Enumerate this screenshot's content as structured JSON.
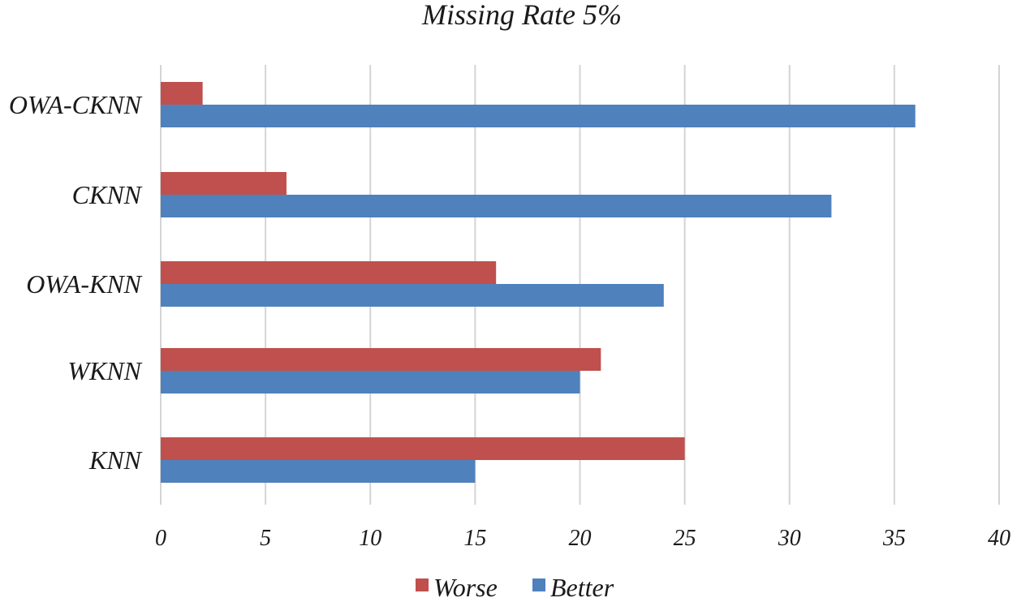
{
  "chart_data": {
    "type": "bar",
    "orientation": "horizontal",
    "title": "Missing Rate 5%",
    "categories": [
      "OWA-CKNN",
      "CKNN",
      "OWA-KNN",
      "WKNN",
      "KNN"
    ],
    "series": [
      {
        "name": "Worse",
        "color": "#c0504d",
        "values": [
          2,
          6,
          16,
          21,
          25
        ]
      },
      {
        "name": "Better",
        "color": "#4f81bd",
        "values": [
          36,
          32,
          24,
          20,
          15
        ]
      }
    ],
    "xlim": [
      0,
      40
    ],
    "xticks": [
      0,
      5,
      10,
      15,
      20,
      25,
      30,
      35,
      40
    ],
    "grid": "vertical",
    "legend_position": "bottom-center"
  }
}
